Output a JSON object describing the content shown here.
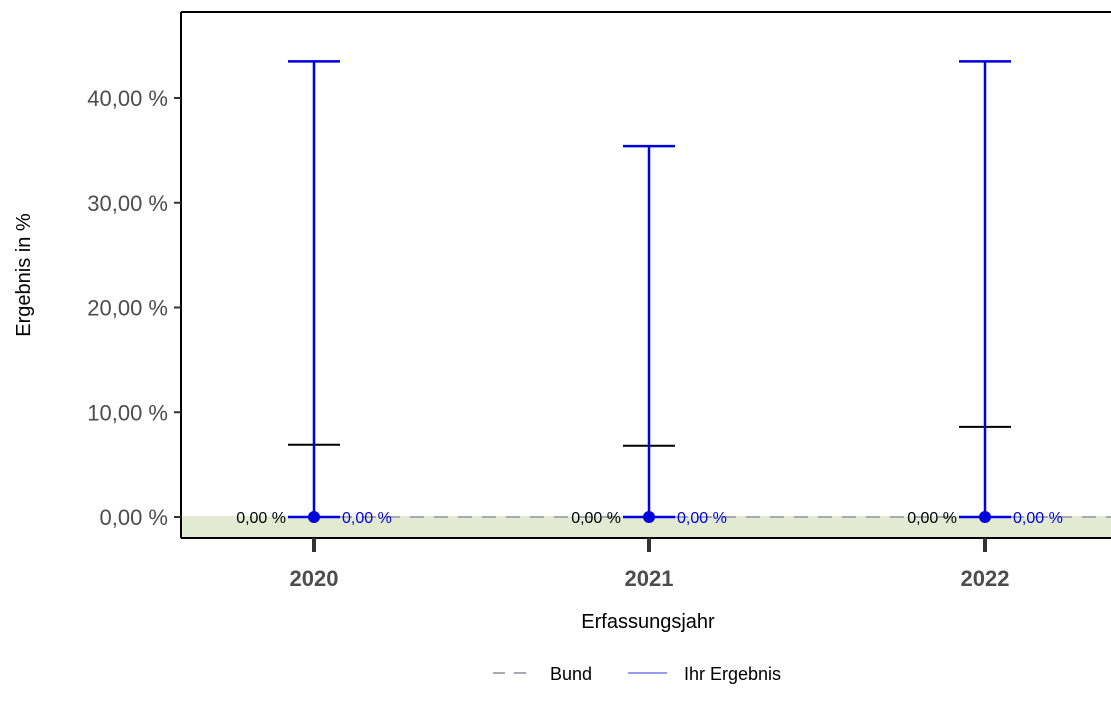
{
  "chart_data": {
    "type": "errorbar",
    "xlabel": "Erfassungsjahr",
    "ylabel": "Ergebnis in %",
    "categories": [
      "2020",
      "2021",
      "2022"
    ],
    "ylim": [
      0,
      45
    ],
    "yticks": [
      0,
      10,
      20,
      30,
      40
    ],
    "ytick_labels": [
      "0,00 %",
      "10,00 %",
      "20,00 %",
      "30,00 %",
      "40,00 %"
    ],
    "reference_band": {
      "from": 0,
      "to": 0,
      "color": "#e2ead2"
    },
    "series": [
      {
        "name": "Bund",
        "style": "dashed",
        "color": "#a9a9b3",
        "values": [
          0,
          0,
          0
        ],
        "labels": [
          "0,00 %",
          "0,00 %",
          "0,00 %"
        ],
        "upper_ci": [
          6.9,
          6.8,
          8.6
        ]
      },
      {
        "name": "Ihr Ergebnis",
        "style": "solid",
        "color": "#0000dd",
        "values": [
          0,
          0,
          0
        ],
        "labels": [
          "0,00 %",
          "0,00 %",
          "0,00 %"
        ],
        "upper_ci": [
          43.5,
          35.4,
          43.5
        ]
      }
    ],
    "legend": {
      "position": "bottom",
      "items": [
        {
          "label": "Bund",
          "style": "dashed",
          "color": "#a9a9b3"
        },
        {
          "label": "Ihr Ergebnis",
          "style": "solid",
          "color": "#9999f0"
        }
      ]
    }
  }
}
